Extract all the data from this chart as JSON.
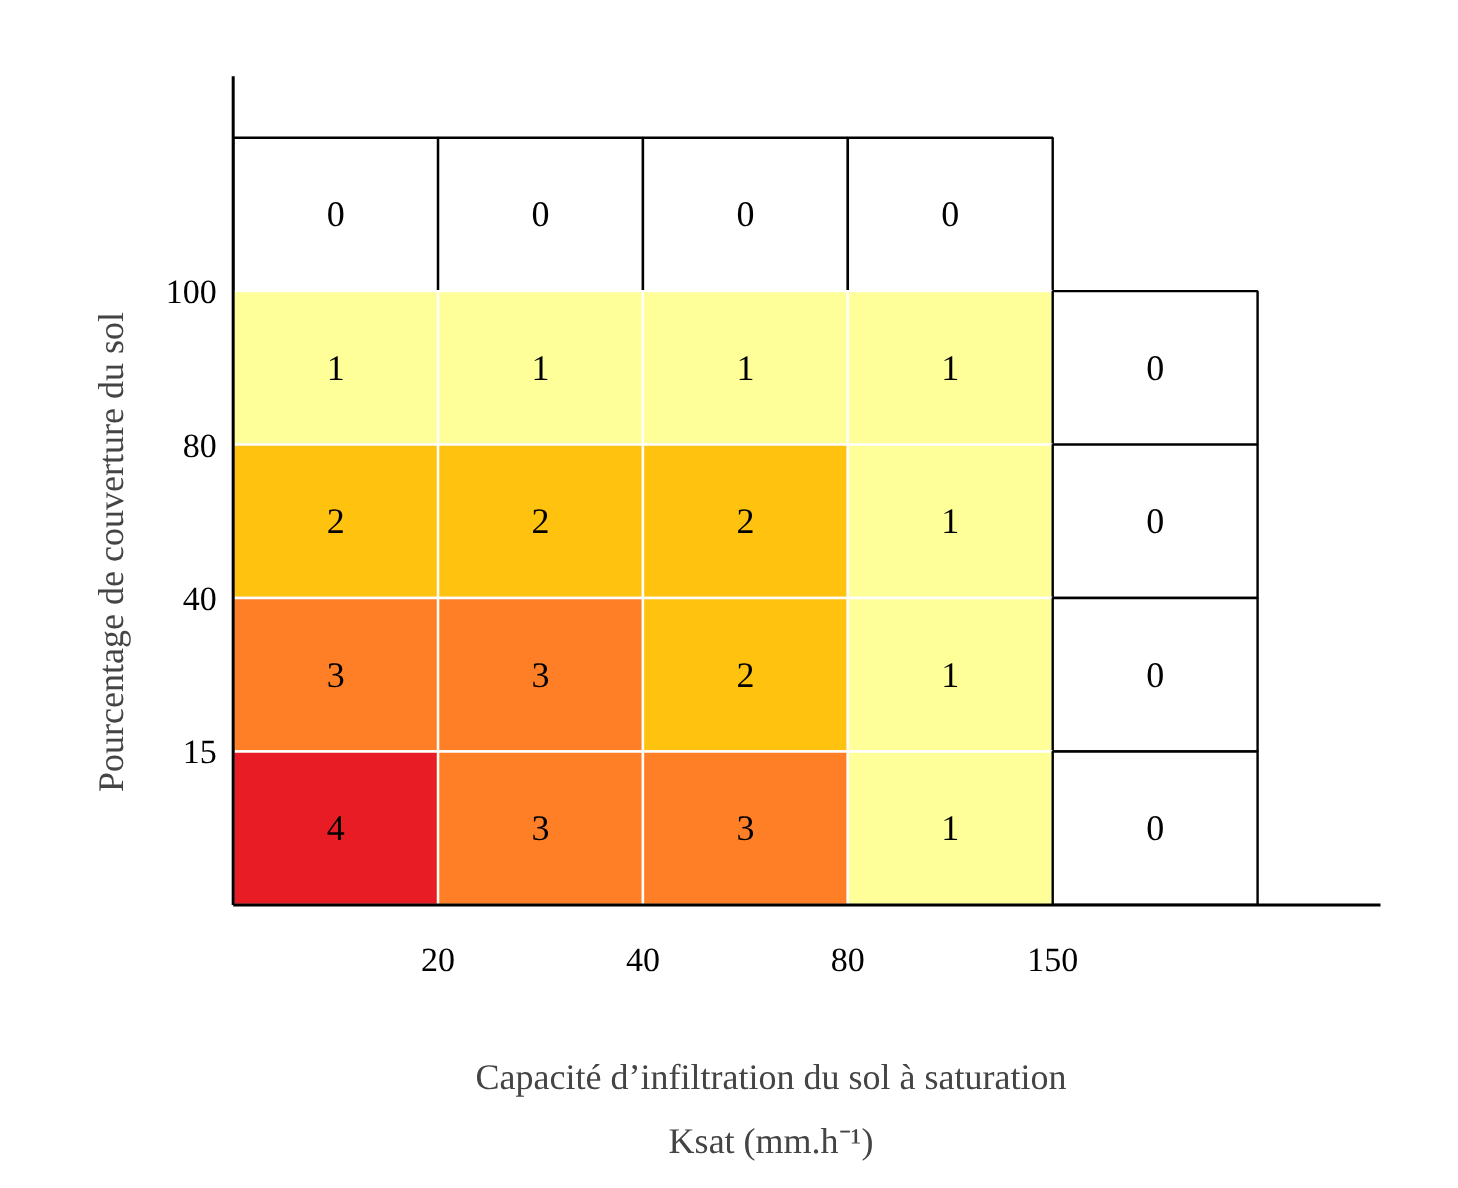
{
  "chart_data": {
    "type": "heatmap",
    "xlabel": "Capacité d’infiltration du sol à saturation\nKsat (mm.h⁻¹)",
    "ylabel": "Pourcentage de couverture du sol",
    "categories": [
      null,
      null,
      null,
      null,
      null
    ],
    "y_categories": [
      null,
      null,
      null,
      null,
      null
    ],
    "cells": [
      [
        0,
        0,
        0,
        0,
        null
      ],
      [
        1,
        1,
        1,
        1,
        0
      ],
      [
        2,
        2,
        2,
        1,
        0
      ],
      [
        3,
        3,
        2,
        1,
        0
      ],
      [
        4,
        3,
        3,
        1,
        0
      ]
    ],
    "colors": [
      "#ffffff",
      "#ffff99",
      "#ffc20e",
      "#ff7f27",
      "#e81c24"
    ],
    "annotations": [
      "20",
      "40",
      "80",
      "150",
      "15",
      "40",
      "80",
      "100"
    ],
    "data_labels": true
  }
}
